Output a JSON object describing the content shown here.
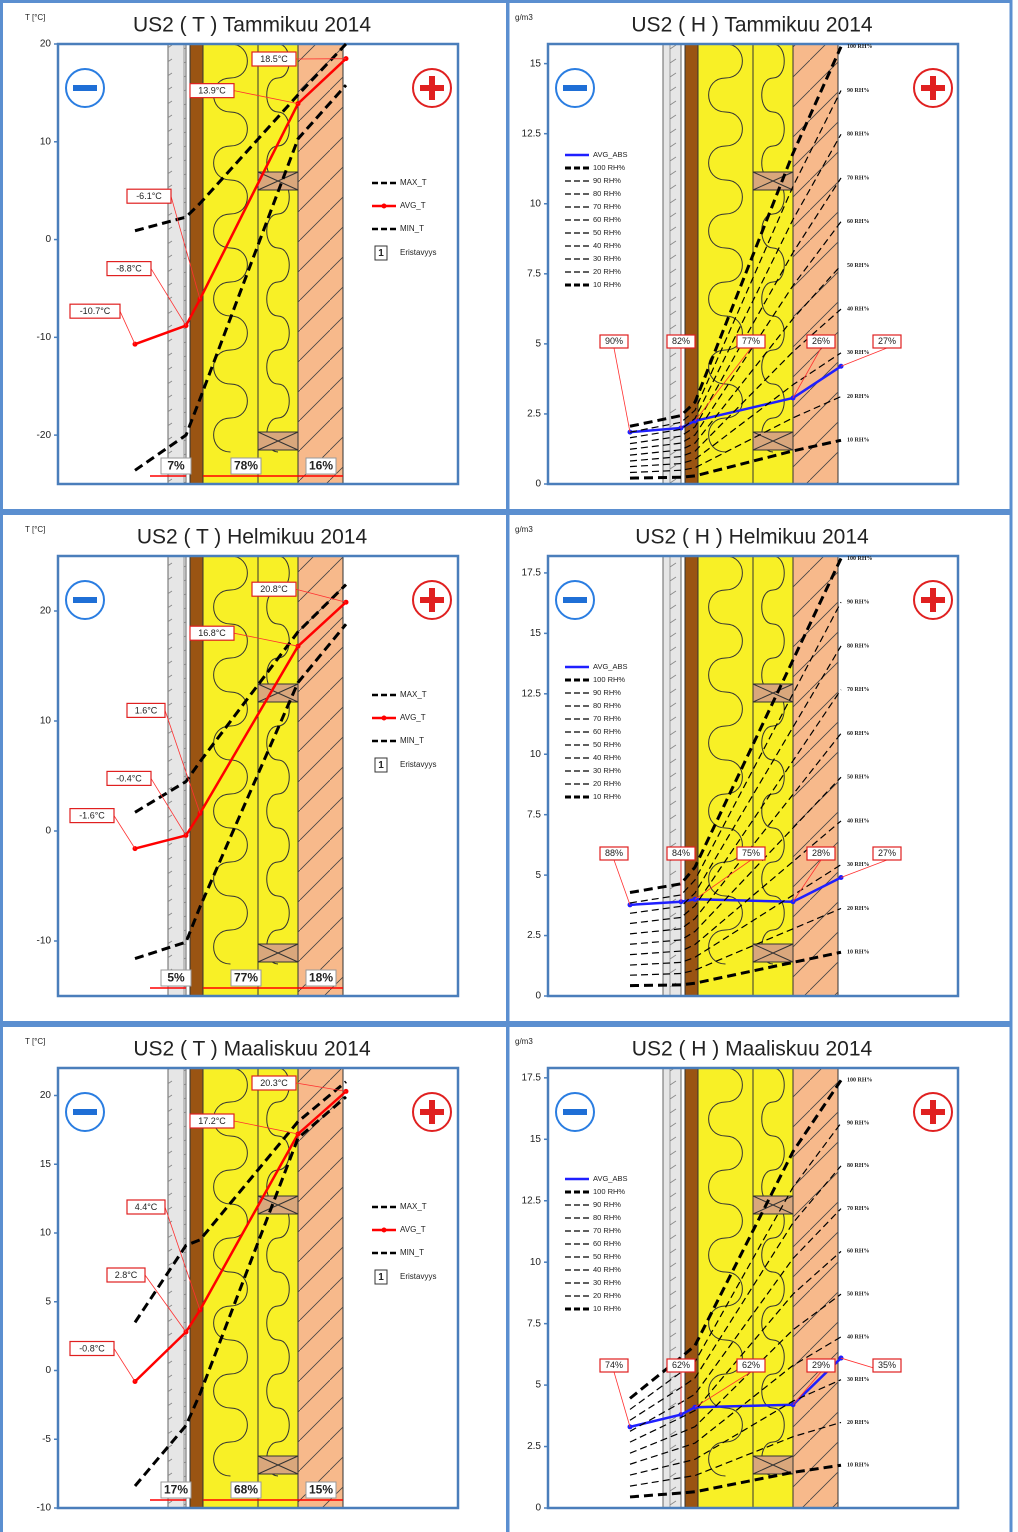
{
  "chart_data": [
    {
      "type": "line",
      "title": "US2 ( T ) Tammikuu 2014",
      "y_label": "T [°C]",
      "categories": [
        null,
        null,
        null,
        null,
        null
      ],
      "ylim": [
        -25,
        20
      ],
      "yticks": [
        -20,
        -10,
        0,
        10,
        20
      ],
      "series": [
        {
          "name": "MAX_T",
          "color": "#000000",
          "values": [
            0.9,
            2.3,
            3.7,
            14.8,
            20
          ]
        },
        {
          "name": "AVG_T",
          "color": "#ff0000",
          "values": [
            -10.7,
            -8.8,
            -6.1,
            13.9,
            18.5
          ],
          "value_labels": [
            "-10.7°C",
            "-8.8°C",
            "-6.1°C",
            "13.9°C",
            "18.5°C"
          ]
        },
        {
          "name": "MIN_T",
          "color": "#000000",
          "values": [
            -23.6,
            -20,
            -16.3,
            10.3,
            15.8
          ]
        }
      ],
      "layer_shares": [
        "7%",
        "78%",
        "16%"
      ],
      "legend_note": {
        "number": "1",
        "label": "Eristavyys"
      }
    },
    {
      "type": "line",
      "title": "US2 ( H ) Tammikuu 2014",
      "y_label": "g/m3",
      "categories": [
        null,
        null,
        null,
        null,
        null
      ],
      "ylim": [
        0,
        15.7
      ],
      "yticks": [
        0,
        2.5,
        5,
        7.5,
        10,
        12.5,
        15
      ],
      "point_labels": [
        "90%",
        "82%",
        "77%",
        "26%",
        "27%"
      ],
      "series": [
        {
          "name": "AVG_ABS",
          "color": "#1f1fff",
          "width": 2.5,
          "values": [
            1.85,
            2.0,
            2.25,
            3.07,
            4.2
          ]
        },
        {
          "name": "100 RH%",
          "color": "#000000",
          "width": 3,
          "values": [
            2.06,
            2.44,
            2.92,
            11.8,
            15.6
          ]
        },
        {
          "name": "90 RH%",
          "color": "#000000",
          "width": 1.2,
          "values": [
            1.85,
            2.2,
            2.63,
            10.62,
            14.04
          ]
        },
        {
          "name": "80 RH%",
          "color": "#000000",
          "width": 1.2,
          "values": [
            1.65,
            1.95,
            2.34,
            9.44,
            12.48
          ]
        },
        {
          "name": "70 RH%",
          "color": "#000000",
          "width": 1.2,
          "values": [
            1.44,
            1.71,
            2.04,
            8.26,
            10.92
          ]
        },
        {
          "name": "60 RH%",
          "color": "#000000",
          "width": 1.2,
          "values": [
            1.24,
            1.46,
            1.75,
            7.08,
            9.36
          ]
        },
        {
          "name": "50 RH%",
          "color": "#000000",
          "width": 1.2,
          "values": [
            1.03,
            1.22,
            1.46,
            5.9,
            7.8
          ]
        },
        {
          "name": "40 RH%",
          "color": "#000000",
          "width": 1.2,
          "values": [
            0.82,
            0.98,
            1.17,
            4.72,
            6.24
          ]
        },
        {
          "name": "30 RH%",
          "color": "#000000",
          "width": 1.2,
          "values": [
            0.62,
            0.73,
            0.88,
            3.54,
            4.68
          ]
        },
        {
          "name": "20 RH%",
          "color": "#000000",
          "width": 1.2,
          "values": [
            0.41,
            0.49,
            0.58,
            2.36,
            3.12
          ]
        },
        {
          "name": "10 RH%",
          "color": "#000000",
          "width": 3,
          "values": [
            0.21,
            0.24,
            0.29,
            1.18,
            1.56
          ]
        }
      ]
    },
    {
      "type": "line",
      "title": "US2 ( T ) Helmikuu 2014",
      "y_label": "T [°C]",
      "categories": [
        null,
        null,
        null,
        null,
        null
      ],
      "ylim": [
        -15,
        25
      ],
      "yticks": [
        -10,
        0,
        10,
        20
      ],
      "series": [
        {
          "name": "MAX_T",
          "color": "#000000",
          "values": [
            1.7,
            4.5,
            6.3,
            18.1,
            22.4
          ]
        },
        {
          "name": "AVG_T",
          "color": "#ff0000",
          "values": [
            -1.6,
            -0.4,
            1.6,
            16.8,
            20.8
          ],
          "value_labels": [
            "-1.6°C",
            "-0.4°C",
            "1.6°C",
            "16.8°C",
            "20.8°C"
          ]
        },
        {
          "name": "MIN_T",
          "color": "#000000",
          "values": [
            -11.6,
            -10.1,
            -6.9,
            13.5,
            18.8
          ]
        }
      ],
      "layer_shares": [
        "5%",
        "77%",
        "18%"
      ],
      "legend_note": {
        "number": "1",
        "label": "Eristavyys"
      }
    },
    {
      "type": "line",
      "title": "US2 ( H ) Helmikuu 2014",
      "y_label": "g/m3",
      "categories": [
        null,
        null,
        null,
        null,
        null
      ],
      "ylim": [
        0,
        18.2
      ],
      "yticks": [
        0,
        2.5,
        5,
        7.5,
        10,
        12.5,
        15,
        17.5
      ],
      "point_labels": [
        "88%",
        "84%",
        "75%",
        "28%",
        "27%"
      ],
      "series": [
        {
          "name": "AVG_ABS",
          "color": "#1f1fff",
          "width": 2.5,
          "values": [
            3.77,
            3.9,
            4.0,
            3.9,
            4.9
          ]
        },
        {
          "name": "100 RH%",
          "color": "#000000",
          "width": 3,
          "values": [
            4.28,
            4.64,
            5.33,
            13.9,
            18.1
          ]
        },
        {
          "name": "90 RH%",
          "color": "#000000",
          "width": 1.2,
          "values": [
            3.85,
            4.18,
            4.8,
            12.51,
            16.29
          ]
        },
        {
          "name": "80 RH%",
          "color": "#000000",
          "width": 1.2,
          "values": [
            3.42,
            3.71,
            4.26,
            11.12,
            14.48
          ]
        },
        {
          "name": "70 RH%",
          "color": "#000000",
          "width": 1.2,
          "values": [
            3.0,
            3.25,
            3.73,
            9.73,
            12.67
          ]
        },
        {
          "name": "60 RH%",
          "color": "#000000",
          "width": 1.2,
          "values": [
            2.57,
            2.78,
            3.2,
            8.34,
            10.86
          ]
        },
        {
          "name": "50 RH%",
          "color": "#000000",
          "width": 1.2,
          "values": [
            2.14,
            2.32,
            2.67,
            6.95,
            9.05
          ]
        },
        {
          "name": "40 RH%",
          "color": "#000000",
          "width": 1.2,
          "values": [
            1.71,
            1.86,
            2.13,
            5.56,
            7.24
          ]
        },
        {
          "name": "30 RH%",
          "color": "#000000",
          "width": 1.2,
          "values": [
            1.28,
            1.39,
            1.6,
            4.17,
            5.43
          ]
        },
        {
          "name": "20 RH%",
          "color": "#000000",
          "width": 1.2,
          "values": [
            0.86,
            0.93,
            1.07,
            2.78,
            3.62
          ]
        },
        {
          "name": "10 RH%",
          "color": "#000000",
          "width": 3,
          "values": [
            0.43,
            0.46,
            0.53,
            1.39,
            1.81
          ]
        }
      ]
    },
    {
      "type": "line",
      "title": "US2 ( T ) Maaliskuu 2014",
      "y_label": "T [°C]",
      "categories": [
        null,
        null,
        null,
        null,
        null
      ],
      "ylim": [
        -10,
        22
      ],
      "yticks": [
        -10,
        -5,
        0,
        5,
        10,
        15,
        20
      ],
      "series": [
        {
          "name": "MAX_T",
          "color": "#000000",
          "values": [
            3.5,
            9.1,
            9.5,
            18.1,
            21
          ]
        },
        {
          "name": "AVG_T",
          "color": "#ff0000",
          "values": [
            -0.8,
            2.8,
            4.4,
            17.2,
            20.3
          ],
          "value_labels": [
            "-0.8°C",
            "2.8°C",
            "4.4°C",
            "17.2°C",
            "20.3°C"
          ]
        },
        {
          "name": "MIN_T",
          "color": "#000000",
          "values": [
            -8.4,
            -4,
            -1.7,
            16.9,
            19.9
          ]
        }
      ],
      "layer_shares": [
        "17%",
        "68%",
        "15%"
      ],
      "legend_note": {
        "number": "1",
        "label": "Eristavyys"
      }
    },
    {
      "type": "line",
      "title": "US2 ( H ) Maaliskuu 2014",
      "y_label": "g/m3",
      "categories": [
        null,
        null,
        null,
        null,
        null
      ],
      "ylim": [
        0,
        17.9
      ],
      "yticks": [
        0,
        2.5,
        5,
        7.5,
        10,
        12.5,
        15,
        17.5
      ],
      "point_labels": [
        "74%",
        "62%",
        "62%",
        "29%",
        "35%"
      ],
      "series": [
        {
          "name": "AVG_ABS",
          "color": "#1f1fff",
          "width": 2.5,
          "values": [
            3.3,
            3.8,
            4.1,
            4.2,
            6.1
          ]
        },
        {
          "name": "100 RH%",
          "color": "#000000",
          "width": 3,
          "values": [
            4.46,
            6.13,
            6.61,
            14.5,
            17.4
          ]
        },
        {
          "name": "90 RH%",
          "color": "#000000",
          "width": 1.2,
          "values": [
            4.01,
            5.52,
            5.95,
            13.05,
            15.66
          ]
        },
        {
          "name": "80 RH%",
          "color": "#000000",
          "width": 1.2,
          "values": [
            3.57,
            4.9,
            5.29,
            11.6,
            13.92
          ]
        },
        {
          "name": "70 RH%",
          "color": "#000000",
          "width": 1.2,
          "values": [
            3.12,
            4.29,
            4.63,
            10.15,
            12.18
          ]
        },
        {
          "name": "60 RH%",
          "color": "#000000",
          "width": 1.2,
          "values": [
            2.68,
            3.68,
            3.97,
            8.7,
            10.44
          ]
        },
        {
          "name": "50 RH%",
          "color": "#000000",
          "width": 1.2,
          "values": [
            2.23,
            3.07,
            3.31,
            7.25,
            8.7
          ]
        },
        {
          "name": "40 RH%",
          "color": "#000000",
          "width": 1.2,
          "values": [
            1.78,
            2.45,
            2.64,
            5.8,
            6.96
          ]
        },
        {
          "name": "30 RH%",
          "color": "#000000",
          "width": 1.2,
          "values": [
            1.34,
            1.84,
            1.98,
            4.35,
            5.22
          ]
        },
        {
          "name": "20 RH%",
          "color": "#000000",
          "width": 1.2,
          "values": [
            0.89,
            1.23,
            1.32,
            2.9,
            3.48
          ]
        },
        {
          "name": "10 RH%",
          "color": "#000000",
          "width": 3,
          "values": [
            0.45,
            0.61,
            0.66,
            1.45,
            1.74
          ]
        }
      ]
    }
  ]
}
